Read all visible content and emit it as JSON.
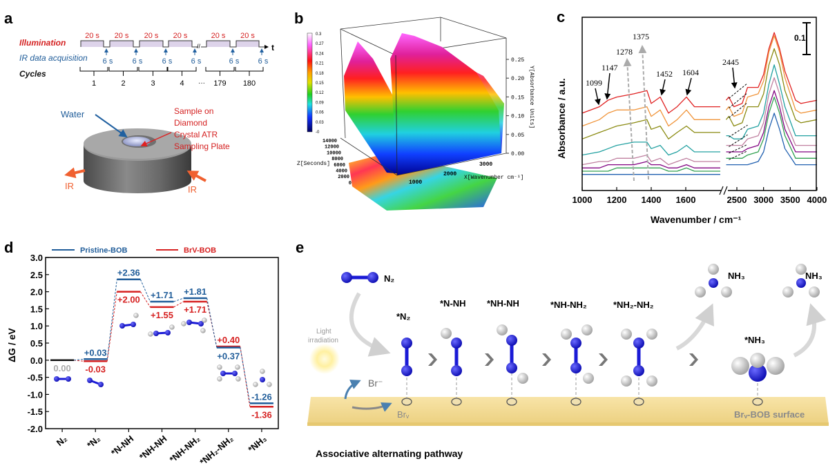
{
  "panel_labels": {
    "a": "a",
    "b": "b",
    "c": "c",
    "d": "d",
    "e": "e"
  },
  "colors": {
    "pristine": "#1f5c99",
    "brv": "#d62020",
    "nitrogen": "#1a1ad6",
    "hydrogen": "#e8e8e8",
    "surface": "#f3dc98"
  },
  "panel_a": {
    "illumination_label": "Illumination",
    "ir_label": "IR data acquisition",
    "cycles_label": "Cycles",
    "pulse_labels": [
      "20 s",
      "20 s",
      "20 s",
      "20 s",
      "20 s",
      "20 s"
    ],
    "acq_labels": [
      "6 s",
      "6 s",
      "6 s",
      "6 s",
      "6 s",
      "6 s"
    ],
    "cycle_numbers": [
      "1",
      "2",
      "3",
      "4",
      "179",
      "180"
    ],
    "ellipsis": "···",
    "time_axis": "t",
    "water_label": "Water",
    "sample_label": [
      "Sample on",
      "Diamond",
      "Crystal ATR",
      "Sampling Plate"
    ],
    "ir_left": "IR",
    "ir_right": "IR"
  },
  "panel_b": {
    "colorbar_ticks": [
      "0.3",
      "0.27",
      "0.24",
      "0.21",
      "0.18",
      "0.15",
      "0.12",
      "0.09",
      "0.06",
      "0.03",
      "-0"
    ],
    "y_axis_label": "Y[Absorbance Units]",
    "y_ticks": [
      "0.25",
      "0.20",
      "0.15",
      "0.10",
      "0.05",
      "0.00"
    ],
    "z_axis_label": "Z[Seconds]",
    "z_ticks": [
      "14000",
      "12000",
      "10000",
      "8000",
      "6000",
      "4000",
      "2000",
      "0"
    ],
    "x_axis_label": "X[Wavenumber cm⁻¹]",
    "x_ticks": [
      "1000",
      "2000",
      "3000"
    ]
  },
  "chart_data": [
    {
      "panel": "c",
      "type": "line",
      "xlabel": "Wavenumber / cm⁻¹",
      "ylabel": "Absorbance / a.u.",
      "x_axis_break": [
        1800,
        2300
      ],
      "xlim": [
        1000,
        4000
      ],
      "x_ticks": [
        1000,
        1200,
        1400,
        1600,
        2500,
        3000,
        3500,
        4000
      ],
      "scale_bar": "0.1",
      "annotations": [
        "1099",
        "1147",
        "1278",
        "1375",
        "1452",
        "1604",
        "2445"
      ],
      "x": [
        1000,
        1100,
        1150,
        1200,
        1300,
        1375,
        1400,
        1452,
        1500,
        1550,
        1604,
        1650,
        1700,
        1800,
        2300,
        2350,
        2445,
        2600,
        2700,
        2900,
        3000,
        3100,
        3200,
        3300,
        3400,
        3600,
        3700,
        4000
      ],
      "series": [
        {
          "color": "#e02020",
          "values": [
            0.24,
            0.26,
            0.28,
            0.29,
            0.3,
            0.31,
            0.27,
            0.29,
            0.24,
            0.26,
            0.29,
            0.26,
            0.26,
            0.26,
            0.28,
            0.29,
            0.26,
            0.27,
            0.32,
            0.32,
            0.36,
            0.44,
            0.49,
            0.44,
            0.37,
            0.28,
            0.27,
            0.28
          ]
        },
        {
          "color": "#f0943a",
          "values": [
            0.2,
            0.22,
            0.24,
            0.25,
            0.25,
            0.26,
            0.23,
            0.25,
            0.2,
            0.22,
            0.25,
            0.22,
            0.22,
            0.22,
            0.25,
            0.26,
            0.23,
            0.24,
            0.29,
            0.3,
            0.34,
            0.43,
            0.48,
            0.43,
            0.35,
            0.25,
            0.24,
            0.25
          ]
        },
        {
          "color": "#8a8a10",
          "values": [
            0.16,
            0.18,
            0.19,
            0.2,
            0.21,
            0.22,
            0.19,
            0.2,
            0.16,
            0.18,
            0.2,
            0.18,
            0.18,
            0.18,
            0.22,
            0.23,
            0.2,
            0.21,
            0.26,
            0.26,
            0.3,
            0.39,
            0.44,
            0.39,
            0.31,
            0.22,
            0.21,
            0.22
          ]
        },
        {
          "color": "#20a0a0",
          "values": [
            0.11,
            0.12,
            0.13,
            0.14,
            0.15,
            0.15,
            0.13,
            0.14,
            0.11,
            0.12,
            0.14,
            0.12,
            0.12,
            0.12,
            0.17,
            0.17,
            0.16,
            0.16,
            0.19,
            0.2,
            0.24,
            0.33,
            0.39,
            0.33,
            0.26,
            0.17,
            0.17,
            0.17
          ]
        },
        {
          "color": "#c080a0",
          "values": [
            0.08,
            0.09,
            0.09,
            0.1,
            0.1,
            0.11,
            0.09,
            0.1,
            0.08,
            0.09,
            0.1,
            0.09,
            0.09,
            0.09,
            0.14,
            0.14,
            0.14,
            0.14,
            0.16,
            0.17,
            0.21,
            0.3,
            0.35,
            0.3,
            0.22,
            0.14,
            0.14,
            0.14
          ]
        },
        {
          "color": "#800080",
          "values": [
            0.07,
            0.07,
            0.08,
            0.08,
            0.08,
            0.09,
            0.08,
            0.08,
            0.07,
            0.07,
            0.08,
            0.07,
            0.07,
            0.07,
            0.12,
            0.12,
            0.12,
            0.12,
            0.13,
            0.14,
            0.18,
            0.26,
            0.31,
            0.26,
            0.19,
            0.12,
            0.12,
            0.12
          ]
        },
        {
          "color": "#30a050",
          "values": [
            0.06,
            0.06,
            0.06,
            0.07,
            0.07,
            0.07,
            0.07,
            0.07,
            0.06,
            0.06,
            0.07,
            0.06,
            0.06,
            0.06,
            0.1,
            0.1,
            0.1,
            0.1,
            0.11,
            0.12,
            0.16,
            0.24,
            0.29,
            0.24,
            0.17,
            0.1,
            0.1,
            0.1
          ]
        },
        {
          "color": "#2060b0",
          "values": [
            0.05,
            0.05,
            0.05,
            0.05,
            0.05,
            0.05,
            0.05,
            0.05,
            0.05,
            0.05,
            0.05,
            0.05,
            0.05,
            0.05,
            0.08,
            0.08,
            0.08,
            0.08,
            0.08,
            0.09,
            0.12,
            0.19,
            0.24,
            0.19,
            0.13,
            0.08,
            0.08,
            0.08
          ]
        }
      ]
    },
    {
      "panel": "d",
      "type": "line",
      "ylabel": "ΔG / eV",
      "ylim": [
        -2.0,
        3.0
      ],
      "y_ticks": [
        "3.0",
        "2.5",
        "2.0",
        "1.5",
        "1.0",
        "0.5",
        "0.0",
        "-0.5",
        "-1.0",
        "-1.5",
        "-2.0"
      ],
      "categories": [
        "N₂",
        "*N₂",
        "*N-NH",
        "*NH-NH",
        "*NH-NH₂",
        "*NH₂-NH₂",
        "*NH₃"
      ],
      "legend_position": "top",
      "series": [
        {
          "name": "Pristine-BOB",
          "color": "#1f5c99",
          "values": [
            0.0,
            0.03,
            2.36,
            1.71,
            1.81,
            0.37,
            -1.26
          ],
          "labels": [
            "0.00",
            "+0.03",
            "+2.36",
            "+1.71",
            "+1.81",
            "+0.37",
            "-1.26"
          ]
        },
        {
          "name": "BrV-BOB",
          "color": "#d62020",
          "values": [
            0.0,
            -0.03,
            2.0,
            1.55,
            1.71,
            0.4,
            -1.36
          ],
          "labels": [
            "0.00",
            "-0.03",
            "+2.00",
            "+1.55",
            "+1.71",
            "+0.40",
            "-1.36"
          ]
        }
      ]
    }
  ],
  "panel_e": {
    "n2_label": "N₂",
    "step_labels": [
      "*N₂",
      "*N-NH",
      "*NH-NH",
      "*NH-NH₂",
      "*NH₂-NH₂",
      "*NH₃"
    ],
    "nh3_label_1": "NH₃",
    "nh3_label_2": "NH₃",
    "light_label": [
      "Light",
      "irradiation"
    ],
    "br_label": "Br⁻",
    "brv_label": "Brᵥ",
    "surface_label": "Brᵥ-BOB surface",
    "pathway_label": "Associative alternating pathway"
  }
}
